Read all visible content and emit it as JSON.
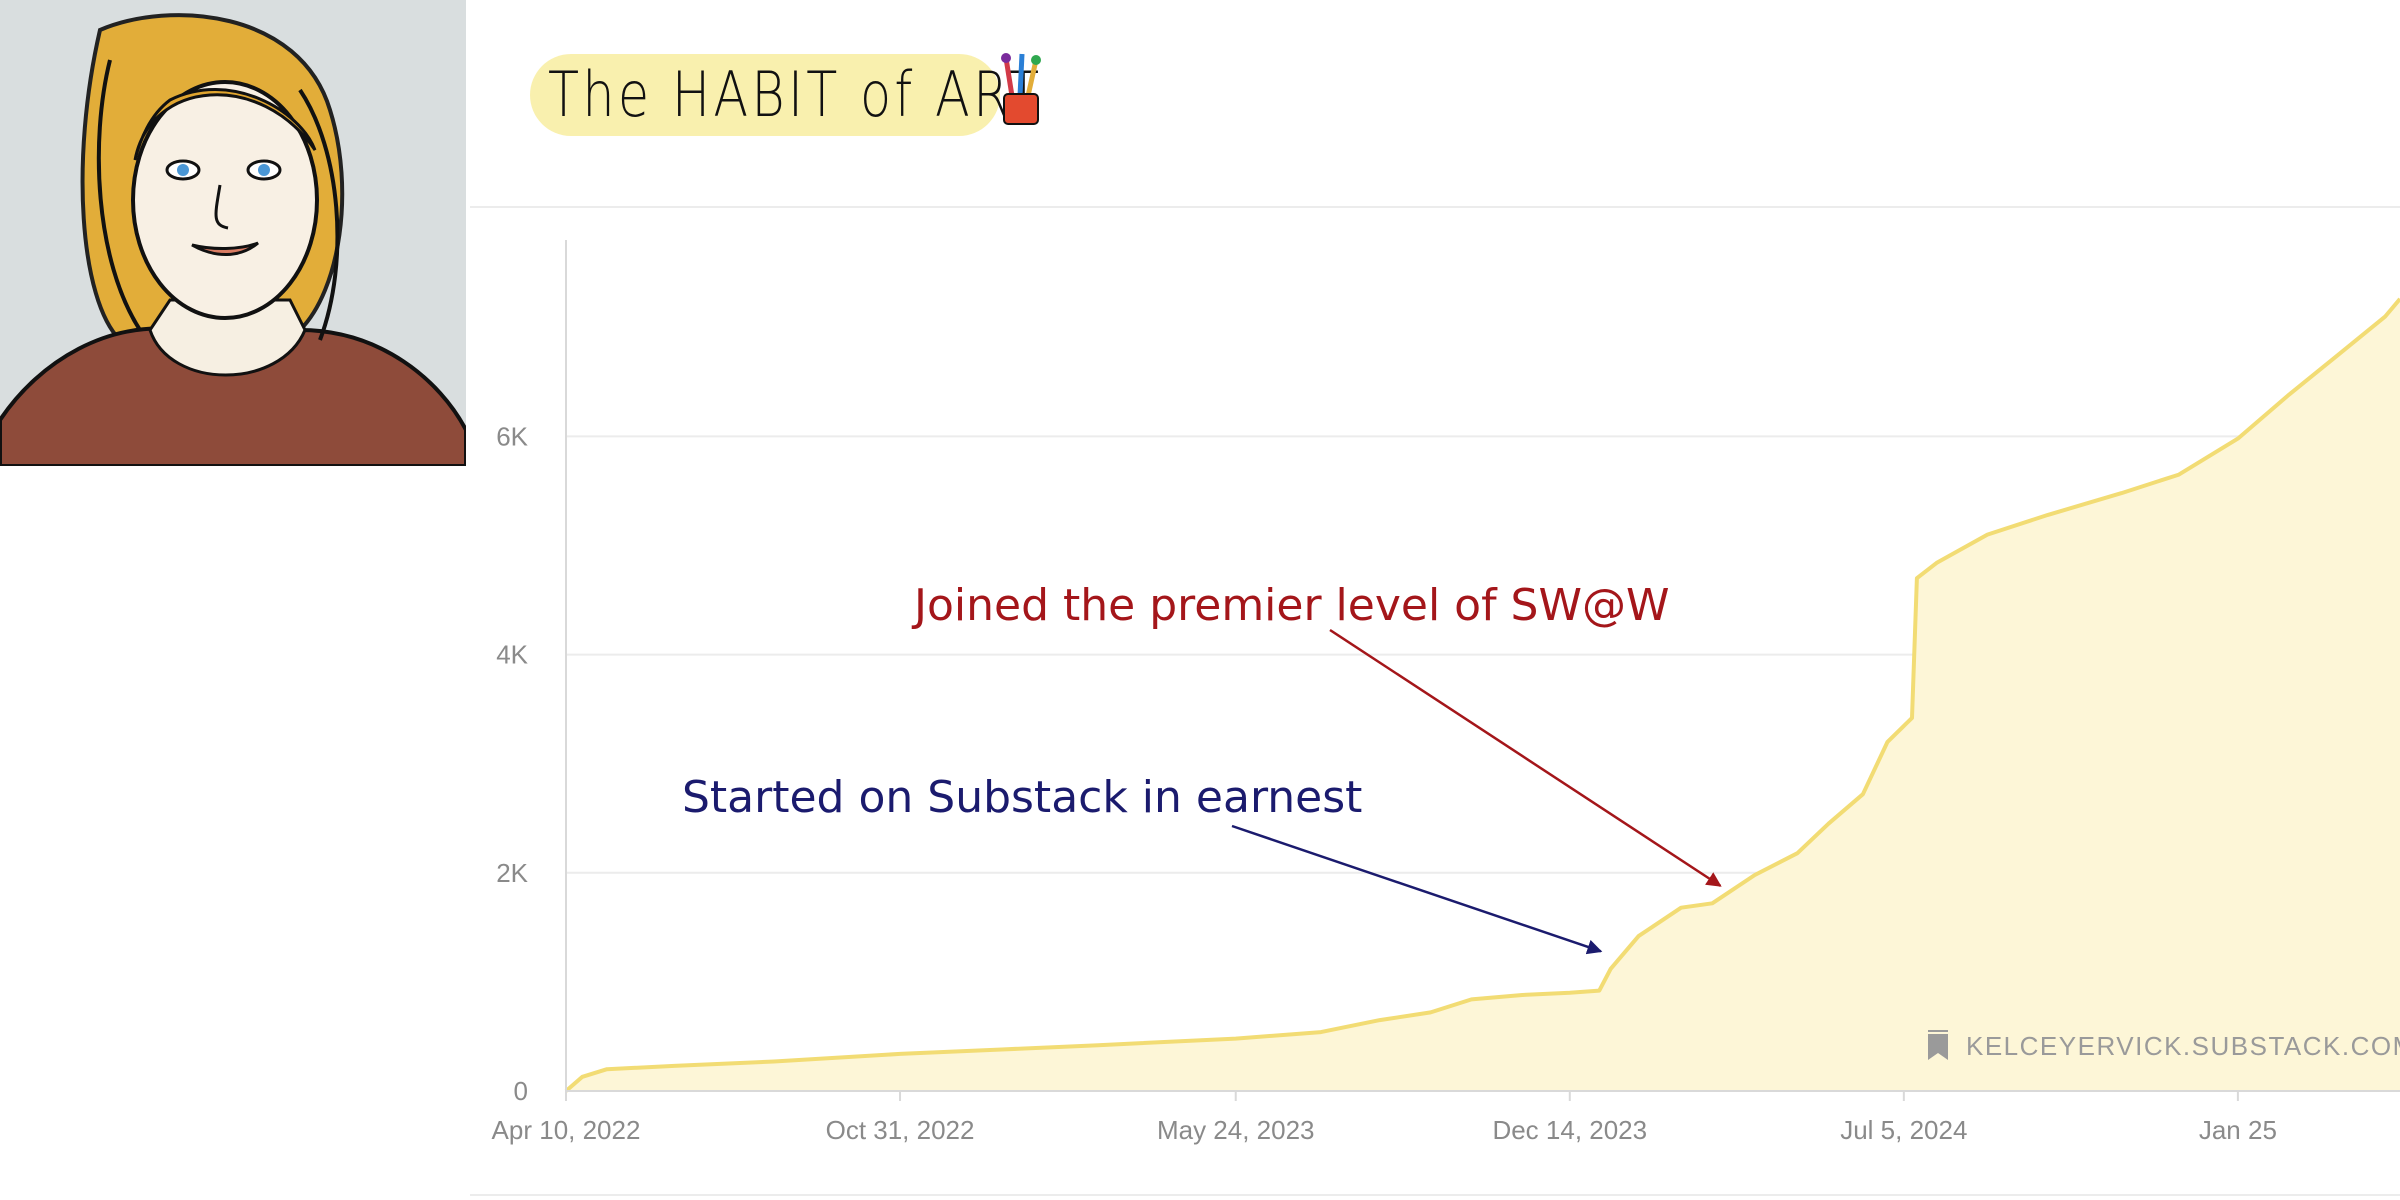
{
  "logo": {
    "text": "The HABIT of ART"
  },
  "watermark": {
    "text": "KELCEYERVICK.SUBSTACK.COM",
    "icon": "substack-bookmark-icon"
  },
  "colors": {
    "line": "#f2dc74",
    "fill": "#fdf6d7",
    "annotation_red": "#a4161a",
    "annotation_blue": "#1b1b6e",
    "grid": "#ececec",
    "axis": "#d9d9d9"
  },
  "chart_data": {
    "type": "area",
    "title": "",
    "xlabel": "",
    "ylabel": "",
    "x_axis": "date",
    "xlim": [
      "2022-04-10",
      "2025-05-04"
    ],
    "ylim": [
      0,
      7800
    ],
    "grid": "horizontal",
    "x_ticks": [
      {
        "date": "2022-04-10",
        "label": "Apr 10, 2022"
      },
      {
        "date": "2022-10-31",
        "label": "Oct 31, 2022"
      },
      {
        "date": "2023-05-24",
        "label": "May 24, 2023"
      },
      {
        "date": "2023-12-14",
        "label": "Dec 14, 2023"
      },
      {
        "date": "2024-07-05",
        "label": "Jul 5, 2024"
      },
      {
        "date": "2025-01-25",
        "label": "Jan 25"
      }
    ],
    "y_ticks": [
      {
        "value": 0,
        "label": "0"
      },
      {
        "value": 2000,
        "label": "2K"
      },
      {
        "value": 4000,
        "label": "4K"
      },
      {
        "value": 6000,
        "label": "6K"
      }
    ],
    "series": [
      {
        "points": [
          [
            "2022-04-10",
            0
          ],
          [
            "2022-04-20",
            130
          ],
          [
            "2022-05-05",
            200
          ],
          [
            "2022-06-15",
            230
          ],
          [
            "2022-08-15",
            270
          ],
          [
            "2022-10-31",
            340
          ],
          [
            "2023-01-01",
            380
          ],
          [
            "2023-03-01",
            420
          ],
          [
            "2023-05-24",
            480
          ],
          [
            "2023-07-15",
            540
          ],
          [
            "2023-08-20",
            650
          ],
          [
            "2023-09-20",
            720
          ],
          [
            "2023-10-15",
            840
          ],
          [
            "2023-11-15",
            880
          ],
          [
            "2023-12-14",
            900
          ],
          [
            "2024-01-01",
            920
          ],
          [
            "2024-01-08",
            1120
          ],
          [
            "2024-01-25",
            1420
          ],
          [
            "2024-02-20",
            1680
          ],
          [
            "2024-03-10",
            1720
          ],
          [
            "2024-04-05",
            1980
          ],
          [
            "2024-05-01",
            2180
          ],
          [
            "2024-05-20",
            2450
          ],
          [
            "2024-06-10",
            2720
          ],
          [
            "2024-06-25",
            3200
          ],
          [
            "2024-07-10",
            3420
          ],
          [
            "2024-07-13",
            4700
          ],
          [
            "2024-07-25",
            4840
          ],
          [
            "2024-08-25",
            5100
          ],
          [
            "2024-10-01",
            5280
          ],
          [
            "2024-11-15",
            5480
          ],
          [
            "2024-12-20",
            5650
          ],
          [
            "2025-01-25",
            5980
          ],
          [
            "2025-02-25",
            6380
          ],
          [
            "2025-03-25",
            6720
          ],
          [
            "2025-04-25",
            7100
          ],
          [
            "2025-05-04",
            7260
          ]
        ]
      }
    ],
    "annotations": [
      {
        "text": "Joined the premier level of SW@W",
        "color": "#a4161a",
        "arrow_to": {
          "date": "2024-03-15",
          "value": 1880
        }
      },
      {
        "text": "Started on Substack in earnest",
        "color": "#1b1b6e",
        "arrow_to": {
          "date": "2024-01-02",
          "value": 1280
        }
      }
    ]
  }
}
